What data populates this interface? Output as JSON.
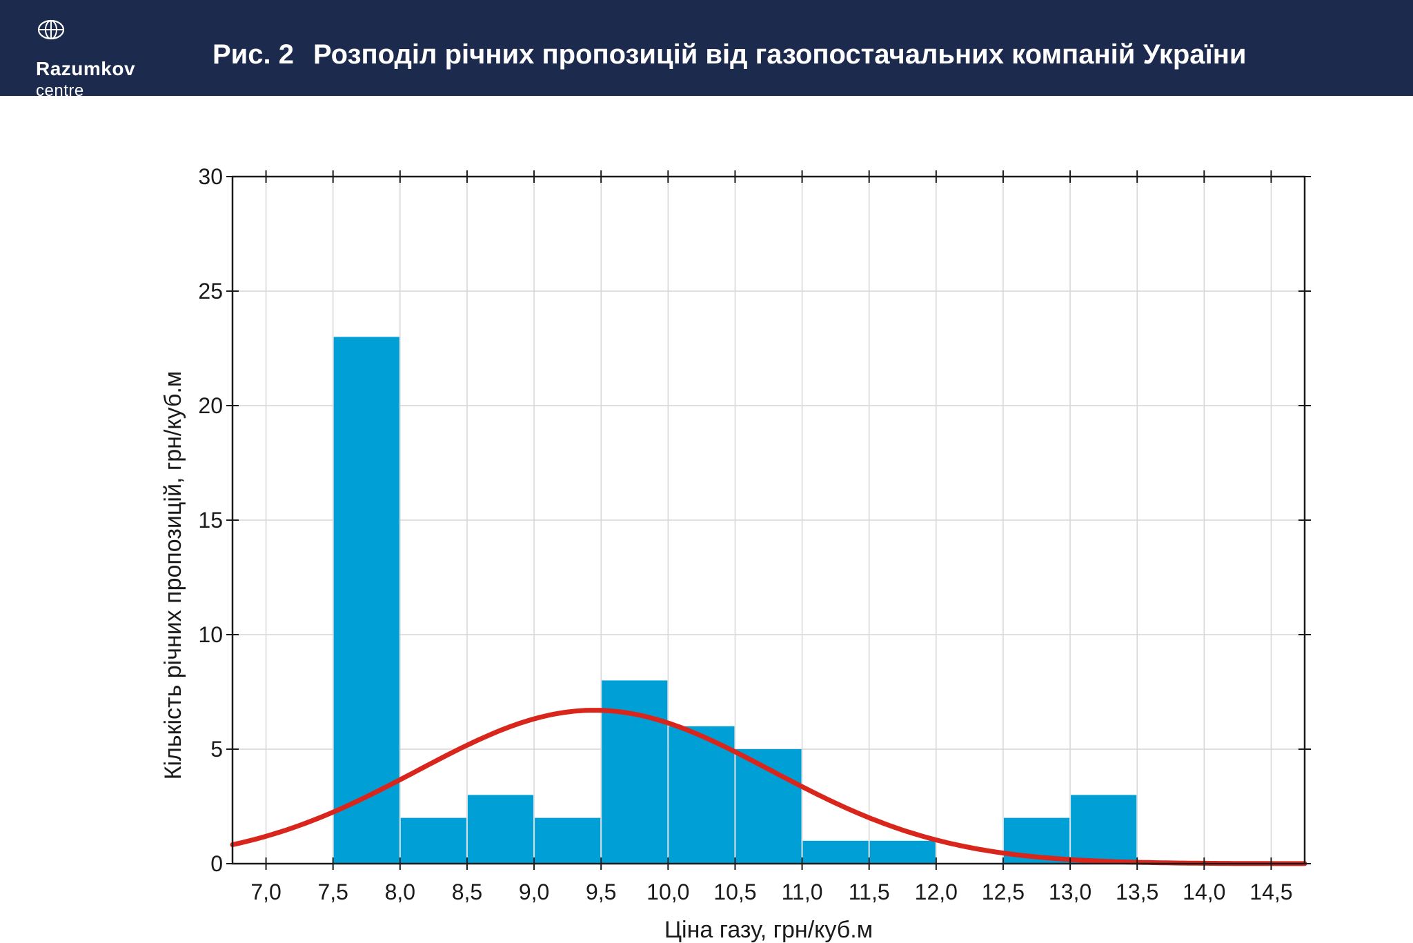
{
  "header": {
    "logo_name": "Razumkov",
    "logo_sub": "centre",
    "logo_icon": "globe-icon",
    "figure_number": "Рис. 2",
    "figure_title": "Розподіл річних пропозицій від газопостачальних компаній України"
  },
  "colors": {
    "header_bg": "#1c2a4e",
    "bar": "#00a0d6",
    "curve": "#d9261c"
  },
  "chart_data": {
    "type": "bar",
    "xlabel": "Ціна газу, грн/куб.м",
    "ylabel": "Кількість річних пропозицій, грн/куб.м",
    "xlim": [
      6.75,
      14.75
    ],
    "ylim": [
      0,
      30
    ],
    "x_ticks": [
      "7,0",
      "7,5",
      "8,0",
      "8,5",
      "9,0",
      "9,5",
      "10,0",
      "10,5",
      "11,0",
      "11,5",
      "12,0",
      "12,5",
      "13,0",
      "13,5",
      "14,0",
      "14,5"
    ],
    "y_ticks": [
      "0",
      "5",
      "10",
      "15",
      "20",
      "25",
      "30"
    ],
    "grid": true,
    "bins": [
      {
        "from": 7.5,
        "to": 8.0,
        "count": 23
      },
      {
        "from": 8.0,
        "to": 8.5,
        "count": 2
      },
      {
        "from": 8.5,
        "to": 9.0,
        "count": 3
      },
      {
        "from": 9.0,
        "to": 9.5,
        "count": 2
      },
      {
        "from": 9.5,
        "to": 10.0,
        "count": 8
      },
      {
        "from": 10.0,
        "to": 10.5,
        "count": 6
      },
      {
        "from": 10.5,
        "to": 11.0,
        "count": 5
      },
      {
        "from": 11.0,
        "to": 11.5,
        "count": 1
      },
      {
        "from": 11.5,
        "to": 12.0,
        "count": 1
      },
      {
        "from": 12.0,
        "to": 12.5,
        "count": 0
      },
      {
        "from": 12.5,
        "to": 13.0,
        "count": 2
      },
      {
        "from": 13.0,
        "to": 13.5,
        "count": 3
      }
    ],
    "fitted_normal_curve": {
      "peak_x": 9.45,
      "peak_y": 6.7,
      "sd": 1.32
    }
  }
}
